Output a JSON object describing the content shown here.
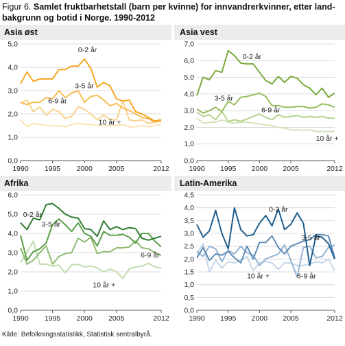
{
  "figure": {
    "label": "Figur 6.",
    "title": "Samlet fruktbarhetstall (barn per kvinne) for innvandrerkvinner, etter land-bakgrunn og botid i Norge. 1990-2012",
    "title_line1": "Samlet fruktbarhetstall (barn per kvinne) for innvandrerkvinner, etter land-",
    "title_line2": "bakgrunn og botid i Norge. 1990-2012",
    "source": "Kilde: Befolkningsstatistikk, Statistisk sentralbyrå."
  },
  "chart_data": [
    {
      "type": "line",
      "title": "Asia øst",
      "ylim": [
        0,
        5
      ],
      "yticks": [
        "0,0",
        "1,0",
        "2,0",
        "3,0",
        "4,0",
        "5,0"
      ],
      "xticks": [
        "1990",
        "1995",
        "2000",
        "2005",
        "2012"
      ],
      "grid": true,
      "x": [
        1990,
        1991,
        1992,
        1993,
        1994,
        1995,
        1996,
        1997,
        1998,
        1999,
        2000,
        2001,
        2002,
        2003,
        2004,
        2005,
        2006,
        2007,
        2008,
        2009,
        2010,
        2011,
        2012
      ],
      "colors": [
        "#f5a623",
        "#f7bc52",
        "#f9d28c",
        "#fbe3b5"
      ],
      "series": [
        {
          "name": "0-2 år",
          "values": [
            3.3,
            3.8,
            3.4,
            3.5,
            3.5,
            3.5,
            3.9,
            3.9,
            4.05,
            4.05,
            4.35,
            3.95,
            3.15,
            3.35,
            3.2,
            2.65,
            2.55,
            2.6,
            2.1,
            2.0,
            1.85,
            1.7,
            1.75
          ]
        },
        {
          "name": "3-5 år",
          "values": [
            2.5,
            2.4,
            2.5,
            2.5,
            2.7,
            2.65,
            3.0,
            2.7,
            2.9,
            3.0,
            2.5,
            2.75,
            2.8,
            2.6,
            2.35,
            2.45,
            2.25,
            2.15,
            2.0,
            1.85,
            1.8,
            1.65,
            1.7
          ]
        },
        {
          "name": "6-9 år",
          "values": [
            2.45,
            2.6,
            2.1,
            2.3,
            1.95,
            2.2,
            2.1,
            1.8,
            1.9,
            2.3,
            2.2,
            2.0,
            1.75,
            1.95,
            1.75,
            1.75,
            2.55,
            1.75,
            1.7,
            1.75,
            1.6,
            1.65,
            1.75
          ]
        },
        {
          "name": "10 år +",
          "values": [
            1.75,
            1.45,
            1.6,
            1.55,
            1.5,
            1.5,
            1.5,
            1.45,
            1.55,
            1.6,
            1.55,
            1.55,
            1.5,
            1.5,
            1.5,
            1.5,
            1.55,
            1.45,
            1.45,
            1.5,
            1.45,
            1.5,
            1.55
          ]
        }
      ],
      "labels": [
        {
          "text": "0-2 år",
          "x": 1999.0,
          "y": 4.65
        },
        {
          "text": "3-5 år",
          "x": 1998.5,
          "y": 3.1
        },
        {
          "text": "6-9 år",
          "x": 1994.3,
          "y": 2.45
        },
        {
          "text": "10 år +",
          "x": 2002.2,
          "y": 1.55
        }
      ]
    },
    {
      "type": "line",
      "title": "Asia vest",
      "ylim": [
        0,
        7
      ],
      "yticks": [
        "0,0",
        "1,0",
        "2,0",
        "3,0",
        "4,0",
        "5,0",
        "6,0",
        "7,0"
      ],
      "xticks": [
        "1990",
        "1995",
        "2000",
        "2005",
        "2012"
      ],
      "grid": true,
      "x": [
        1990,
        1991,
        1992,
        1993,
        1994,
        1995,
        1996,
        1997,
        1998,
        1999,
        2000,
        2001,
        2002,
        2003,
        2004,
        2005,
        2006,
        2007,
        2008,
        2009,
        2010,
        2011,
        2012
      ],
      "colors": [
        "#7aaa3c",
        "#97be5e",
        "#b5d28b",
        "#d2e4b8"
      ],
      "series": [
        {
          "name": "0-2 år",
          "values": [
            3.9,
            5.0,
            4.85,
            5.4,
            5.3,
            6.6,
            6.3,
            5.85,
            5.8,
            5.8,
            5.3,
            4.8,
            4.6,
            5.05,
            4.7,
            5.05,
            4.95,
            4.55,
            4.35,
            3.95,
            4.35,
            3.8,
            4.05
          ]
        },
        {
          "name": "3-5 år",
          "values": [
            3.1,
            2.85,
            3.0,
            3.2,
            2.95,
            3.55,
            3.35,
            3.8,
            3.85,
            3.95,
            4.05,
            3.85,
            3.3,
            3.3,
            3.2,
            3.2,
            3.25,
            3.25,
            3.15,
            3.2,
            3.4,
            3.35,
            3.2
          ]
        },
        {
          "name": "6-9 år",
          "values": [
            2.9,
            2.65,
            2.75,
            2.45,
            2.95,
            2.35,
            2.45,
            2.35,
            2.5,
            2.65,
            2.8,
            2.6,
            2.45,
            2.75,
            2.6,
            2.65,
            2.7,
            2.6,
            2.65,
            2.6,
            2.65,
            2.55,
            2.55
          ]
        },
        {
          "name": "10 år +",
          "values": [
            2.55,
            2.25,
            2.3,
            2.3,
            2.45,
            2.3,
            2.25,
            2.3,
            2.3,
            2.25,
            2.2,
            2.15,
            2.1,
            2.0,
            1.95,
            1.85,
            1.85,
            1.8,
            1.85,
            1.75,
            1.75,
            1.75,
            1.75
          ]
        }
      ],
      "labels": [
        {
          "text": "0-2 år",
          "x": 1997.3,
          "y": 6.1
        },
        {
          "text": "3-5 år",
          "x": 1992.8,
          "y": 3.6
        },
        {
          "text": "6-9 år",
          "x": 2000.3,
          "y": 2.9
        },
        {
          "text": "10 år +",
          "x": 2009.0,
          "y": 1.2
        }
      ]
    },
    {
      "type": "line",
      "title": "Afrika",
      "ylim": [
        0,
        6
      ],
      "yticks": [
        "0,0",
        "1,0",
        "2,0",
        "3,0",
        "4,0",
        "5,0",
        "6,0"
      ],
      "xticks": [
        "1990",
        "1995",
        "2000",
        "2005",
        "2012"
      ],
      "grid": true,
      "x": [
        1990,
        1991,
        1992,
        1993,
        1994,
        1995,
        1996,
        1997,
        1998,
        1999,
        2000,
        2001,
        2002,
        2003,
        2004,
        2005,
        2006,
        2007,
        2008,
        2009,
        2010,
        2011,
        2012
      ],
      "colors": [
        "#2e7d32",
        "#5a9e47",
        "#8dbb6f",
        "#c2dcae"
      ],
      "series": [
        {
          "name": "0-2 år",
          "values": [
            4.55,
            4.2,
            4.8,
            4.7,
            5.5,
            5.55,
            5.3,
            5.0,
            4.85,
            4.8,
            4.25,
            4.2,
            3.85,
            4.65,
            4.2,
            4.35,
            4.2,
            4.3,
            4.25,
            3.75,
            3.65,
            3.75,
            3.85
          ]
        },
        {
          "name": "3-5 år",
          "values": [
            3.9,
            2.6,
            3.05,
            3.2,
            3.5,
            4.45,
            4.75,
            4.45,
            4.1,
            4.55,
            4.0,
            3.85,
            3.35,
            4.1,
            3.9,
            3.9,
            3.95,
            3.8,
            3.5,
            4.0,
            4.0,
            3.6,
            3.3
          ]
        },
        {
          "name": "6-9 år",
          "values": [
            3.25,
            2.4,
            2.6,
            3.0,
            3.35,
            2.4,
            2.8,
            2.95,
            3.0,
            3.75,
            3.55,
            3.8,
            2.95,
            3.05,
            3.05,
            3.25,
            3.25,
            3.3,
            3.6,
            3.25,
            3.2,
            3.0,
            2.85
          ]
        },
        {
          "name": "10 år +",
          "values": [
            2.5,
            3.0,
            3.6,
            2.4,
            2.4,
            2.3,
            2.35,
            1.95,
            2.35,
            2.4,
            2.25,
            2.3,
            2.2,
            2.0,
            2.15,
            2.0,
            1.65,
            2.15,
            2.25,
            2.3,
            2.45,
            2.25,
            2.2
          ]
        }
      ],
      "labels": [
        {
          "text": "0-2 år",
          "x": 1990.4,
          "y": 4.85
        },
        {
          "text": "3-5 år",
          "x": 1993.3,
          "y": 4.35
        },
        {
          "text": "6-9 år",
          "x": 2008.8,
          "y": 2.75
        },
        {
          "text": "10 år +",
          "x": 2001.3,
          "y": 1.2
        }
      ]
    },
    {
      "type": "line",
      "title": "Latin-Amerika",
      "ylim": [
        0,
        4.5
      ],
      "yticks": [
        "0,0",
        "0,5",
        "1,0",
        "1,5",
        "2,0",
        "2,5",
        "3,0",
        "3,5",
        "4,0",
        "4,5"
      ],
      "xticks": [
        "1990",
        "1995",
        "2000",
        "2005",
        "2012"
      ],
      "grid": true,
      "x": [
        1990,
        1991,
        1992,
        1993,
        1994,
        1995,
        1996,
        1997,
        1998,
        1999,
        2000,
        2001,
        2002,
        2003,
        2004,
        2005,
        2006,
        2007,
        2008,
        2009,
        2010,
        2011,
        2012
      ],
      "colors": [
        "#1f5d8c",
        "#5b8bb8",
        "#93b4d4",
        "#c3d6e8"
      ],
      "series": [
        {
          "name": "0-2 år",
          "values": [
            3.35,
            2.85,
            3.1,
            3.9,
            3.0,
            2.4,
            4.0,
            3.15,
            2.9,
            2.95,
            3.4,
            3.7,
            3.3,
            3.95,
            3.15,
            3.35,
            3.8,
            3.4,
            1.75,
            2.9,
            2.85,
            2.6,
            2.0
          ]
        },
        {
          "name": "3-5 år",
          "values": [
            2.05,
            2.45,
            1.95,
            2.2,
            2.15,
            2.3,
            2.05,
            1.85,
            2.5,
            2.0,
            2.65,
            2.65,
            2.9,
            2.45,
            2.2,
            2.5,
            2.6,
            2.7,
            2.75,
            2.95,
            2.95,
            2.9,
            2.05
          ]
        },
        {
          "name": "6-9 år",
          "values": [
            2.3,
            2.1,
            2.5,
            2.4,
            1.9,
            2.35,
            2.2,
            2.5,
            2.25,
            2.15,
            1.75,
            2.0,
            2.1,
            2.2,
            2.55,
            1.95,
            1.3,
            2.45,
            2.5,
            2.05,
            2.1,
            2.45,
            2.55
          ]
        },
        {
          "name": "10 år +",
          "values": [
            2.2,
            2.6,
            1.5,
            1.95,
            1.65,
            1.9,
            1.85,
            1.95,
            2.1,
            1.55,
            1.85,
            1.9,
            1.85,
            1.6,
            1.85,
            1.85,
            1.75,
            1.75,
            1.8,
            1.9,
            1.85,
            2.0,
            1.55
          ]
        }
      ],
      "labels": [
        {
          "text": "0-2 år",
          "x": 2001.5,
          "y": 3.85
        },
        {
          "text": "3-5 år",
          "x": 2006.7,
          "y": 2.75
        },
        {
          "text": "6-9 år",
          "x": 2006.0,
          "y": 1.25
        },
        {
          "text": "10 år +",
          "x": 1998.0,
          "y": 1.25
        }
      ]
    }
  ]
}
